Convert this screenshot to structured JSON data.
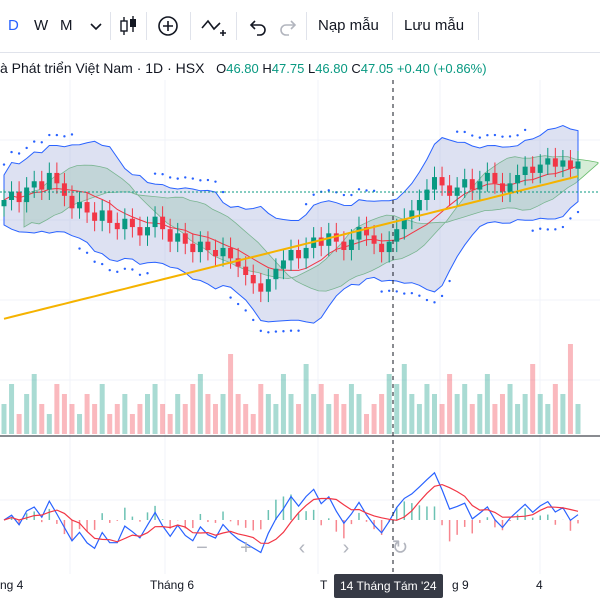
{
  "toolbar": {
    "intervals": [
      "D",
      "W",
      "M"
    ],
    "load_template_label": "Nạp mẫu",
    "save_template_label": "Lưu mẫu",
    "icons": [
      "chevron-down-icon",
      "candles-icon",
      "plus-circle-icon",
      "indicator-icon",
      "undo-icon",
      "redo-icon"
    ]
  },
  "legend": {
    "symbol": "à Phát triển Việt Nam",
    "sep1": "·",
    "interval": "1D",
    "sep2": "·",
    "exchange": "HSX",
    "o_label": "O",
    "o_value": "46.80",
    "h_label": "H",
    "h_value": "47.75",
    "l_label": "L",
    "l_value": "46.80",
    "c_label": "C",
    "c_value": "47.05",
    "change": "+0.40 (+0.86%)"
  },
  "colors": {
    "up": "#089981",
    "down": "#f23645",
    "macd": "#2962ff",
    "signal": "#f23645",
    "ma": "#f5b300",
    "cloud_green": "#a5d6a7",
    "cloud_red": "#f7a8a8",
    "band": "#9fa8da"
  },
  "xaxis": {
    "labels": [
      "ng 4",
      "Tháng 6",
      "T",
      "g 9",
      "4"
    ]
  },
  "crosshair_label": "14 Tháng Tám '24",
  "controls": [
    "minus-icon",
    "plus-icon",
    "chevron-left-icon",
    "chevron-right-icon",
    "reset-icon"
  ],
  "chart_data": {
    "type": "candlestick",
    "close_series": [
      45.2,
      45.6,
      45.1,
      45.8,
      46.1,
      45.7,
      46.5,
      46.0,
      45.4,
      44.8,
      45.1,
      44.6,
      44.2,
      44.7,
      44.1,
      43.8,
      44.3,
      43.9,
      43.5,
      43.9,
      44.4,
      43.8,
      43.2,
      43.6,
      43.1,
      42.7,
      43.2,
      42.8,
      42.5,
      42.9,
      42.4,
      42.0,
      41.6,
      41.2,
      40.8,
      41.4,
      41.9,
      42.3,
      42.8,
      42.4,
      42.9,
      43.4,
      43.0,
      43.6,
      43.2,
      42.8,
      43.3,
      43.9,
      43.5,
      43.1,
      42.7,
      43.2,
      43.8,
      44.3,
      44.7,
      45.2,
      45.7,
      46.3,
      45.9,
      45.4,
      45.8,
      46.2,
      45.7,
      46.1,
      46.5,
      46.0,
      45.6,
      46.0,
      46.4,
      46.8,
      46.5,
      46.9,
      47.2,
      46.8,
      47.1,
      46.7,
      47.05
    ],
    "volume": [
      3,
      5,
      2,
      4,
      6,
      3,
      2,
      5,
      4,
      3,
      2,
      4,
      3,
      5,
      2,
      3,
      4,
      2,
      3,
      4,
      5,
      3,
      2,
      4,
      3,
      5,
      6,
      4,
      3,
      4,
      8,
      4,
      3,
      2,
      5,
      4,
      3,
      6,
      4,
      3,
      7,
      4,
      5,
      3,
      4,
      3,
      5,
      4,
      2,
      3,
      4,
      6,
      5,
      7,
      4,
      3,
      5,
      4,
      3,
      6,
      4,
      5,
      3,
      4,
      6,
      3,
      4,
      5,
      3,
      4,
      7,
      4,
      3,
      5,
      4,
      9,
      3
    ]
  }
}
